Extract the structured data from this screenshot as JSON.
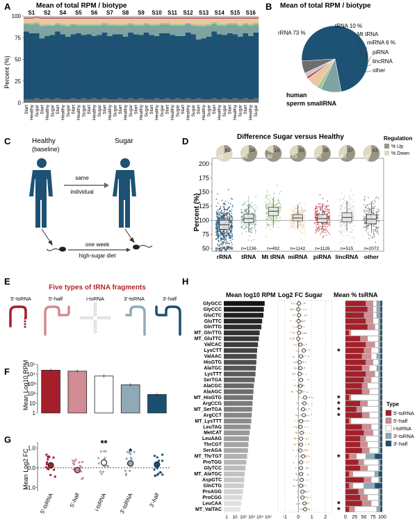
{
  "colors": {
    "rRNA": "#1d5274",
    "tRNA": "#7fa3a0",
    "MtRNA": "#a6c78c",
    "miRNA": "#e9c9a4",
    "piRNA": "#c0333d",
    "lincRNA": "#c9c9c9",
    "other": "#6e6e6e",
    "fiveTs": "#a41f2a",
    "fiveHalf": "#d08d93",
    "iTs": "#ffffff",
    "threeTs": "#8faab6",
    "threeHalf": "#1c4f6f",
    "up": "#999582",
    "down": "#dcd8c2",
    "bar_dark": "#1a1a1a"
  },
  "panels": {
    "A": {
      "letter": "A",
      "title": "Mean of total RPM / biotype",
      "ylabel": "Percent (%)",
      "y_ticks": [
        "0",
        "25",
        "50",
        "75",
        "100"
      ],
      "subjects": [
        "S1",
        "S2",
        "S4",
        "S5",
        "S6",
        "S7",
        "S8",
        "S9",
        "S10",
        "S11",
        "S12",
        "S13",
        "S14",
        "S15",
        "S16"
      ],
      "conditions": [
        "Start",
        "Healthy",
        "Sugar"
      ]
    },
    "B": {
      "letter": "B",
      "title": "Mean of total RPM / biotype",
      "labels": {
        "rRNA": "rRNA 73 %",
        "tRNA": "tRNA 10 %",
        "MtRNA": "Mt tRNA",
        "miRNA": "miRNA 6 %",
        "piRNA": "piRNA",
        "lincRNA": "lincRNA",
        "other": "other"
      },
      "caption1": "human",
      "caption2": "sperm smallRNA"
    },
    "C": {
      "letter": "C",
      "healthy": "Healthy",
      "baseline": "(baseline)",
      "sugar": "Sugar",
      "same": "same",
      "individual": "individual",
      "one_week": "one week",
      "diet": "high-sugar diet"
    },
    "D": {
      "letter": "D",
      "title": "Difference Sugar versus Healthy",
      "ylabel": "Percent (%)",
      "y_ticks": [
        "50",
        "75",
        "100",
        "125",
        "150",
        "175",
        "200"
      ],
      "legend_title": "Regulation",
      "legend_up": "% Up",
      "legend_down": "% Down"
    },
    "E": {
      "letter": "E",
      "title": "Five types of tRNA fragments",
      "types": [
        "5'-tsRNA",
        "5'-half",
        "i-tsRNA",
        "3'-tsRNA",
        "3'-half"
      ]
    },
    "F": {
      "letter": "F",
      "ylabel": "Mean Log10 RPM",
      "y_ticks": [
        "1",
        "10",
        "10²",
        "10³",
        "10⁴",
        "10⁵"
      ]
    },
    "G": {
      "letter": "G",
      "ylabel": "Mean Log2 FC",
      "y_ticks": [
        "-1.0",
        "0.0",
        "1.0"
      ],
      "x_labels": [
        "5'-tsRNA",
        "5'-half",
        "i-tsRNA",
        "3'-tsRNA",
        "3'-half"
      ]
    },
    "H": {
      "letter": "H",
      "title1": "Mean log10 RPM",
      "title2": "Log2 FC Sugar",
      "title3": "Mean % tsRNA",
      "x1_ticks": [
        "1",
        "10",
        "10²",
        "10³",
        "10⁴",
        "10⁵"
      ],
      "x2_ticks": [
        "-1",
        "0",
        "1",
        "2"
      ],
      "x3_ticks": [
        "0",
        "25",
        "50",
        "75",
        "100"
      ],
      "legend_title": "Type",
      "legend_items": [
        "5'-tsRNA",
        "5'-half",
        "i-tsRNA",
        "3'-tsRNA",
        "3'-half"
      ]
    }
  },
  "chart_data": [
    {
      "panel": "A",
      "type": "bar",
      "title": "Mean of total RPM / biotype",
      "ylabel": "Percent (%)",
      "ylim": [
        0,
        100
      ],
      "categories": [
        "S1 Start",
        "S1 Healthy",
        "S1 Sugar",
        "S2 Start",
        "S2 Healthy",
        "S2 Sugar",
        "S4 Start",
        "S4 Healthy",
        "S4 Sugar",
        "S5 Start",
        "S5 Healthy",
        "S5 Sugar",
        "S6 Start",
        "S6 Healthy",
        "S6 Sugar",
        "S7 Start",
        "S7 Healthy",
        "S7 Sugar",
        "S8 Start",
        "S8 Healthy",
        "S8 Sugar",
        "S9 Start",
        "S9 Healthy",
        "S9 Sugar",
        "S10 Start",
        "S10 Healthy",
        "S10 Sugar",
        "S11 Start",
        "S11 Healthy",
        "S11 Sugar",
        "S12 Start",
        "S12 Healthy",
        "S12 Sugar",
        "S13 Start",
        "S13 Healthy",
        "S13 Sugar",
        "S14 Start",
        "S14 Healthy",
        "S14 Sugar",
        "S15 Start",
        "S15 Healthy",
        "S15 Sugar",
        "S16 Start",
        "S16 Healthy",
        "S16 Sugar"
      ],
      "series": [
        {
          "name": "other",
          "values": [
            4,
            4,
            5,
            4,
            5,
            4,
            5,
            4,
            4,
            5,
            4,
            5,
            4,
            5,
            4,
            5,
            4,
            4,
            5,
            4,
            5,
            4,
            5,
            4,
            4,
            5,
            4,
            5,
            4,
            5,
            4,
            5,
            4,
            5,
            4,
            4,
            5,
            4,
            5,
            4,
            5,
            4,
            5,
            4,
            5
          ]
        },
        {
          "name": "rRNA",
          "values": [
            78,
            76,
            75,
            70,
            72,
            74,
            77,
            75,
            72,
            74,
            76,
            73,
            75,
            72,
            74,
            76,
            73,
            75,
            74,
            72,
            76,
            75,
            73,
            77,
            74,
            72,
            76,
            75,
            74,
            72,
            73,
            76,
            75,
            68,
            70,
            72,
            77,
            75,
            73,
            76,
            74,
            72,
            75,
            73,
            76
          ]
        },
        {
          "name": "tRNA",
          "values": [
            9,
            10,
            11,
            14,
            12,
            11,
            8,
            10,
            12,
            11,
            9,
            11,
            10,
            12,
            11,
            9,
            12,
            10,
            10,
            13,
            9,
            10,
            11,
            9,
            11,
            12,
            10,
            10,
            11,
            12,
            12,
            10,
            10,
            15,
            14,
            13,
            9,
            10,
            11,
            10,
            11,
            12,
            10,
            12,
            9
          ]
        },
        {
          "name": "MtRNA",
          "values": [
            1,
            2,
            2,
            2,
            2,
            1,
            2,
            2,
            2,
            1,
            2,
            2,
            2,
            2,
            2,
            2,
            2,
            2,
            1,
            2,
            2,
            2,
            2,
            2,
            2,
            2,
            2,
            2,
            2,
            2,
            2,
            1,
            2,
            2,
            2,
            2,
            2,
            2,
            2,
            2,
            2,
            2,
            2,
            2,
            2
          ]
        },
        {
          "name": "miRNA",
          "values": [
            5,
            5,
            5,
            7,
            6,
            7,
            5,
            6,
            7,
            6,
            6,
            6,
            6,
            6,
            6,
            5,
            6,
            6,
            7,
            6,
            5,
            6,
            6,
            5,
            6,
            6,
            5,
            5,
            6,
            6,
            6,
            5,
            6,
            7,
            7,
            6,
            4,
            6,
            6,
            5,
            5,
            7,
            5,
            6,
            5
          ]
        },
        {
          "name": "piRNA",
          "values": [
            1,
            1,
            1,
            1,
            1,
            1,
            1,
            1,
            1,
            1,
            1,
            1,
            1,
            1,
            1,
            1,
            1,
            1,
            1,
            1,
            1,
            1,
            1,
            1,
            1,
            1,
            1,
            1,
            1,
            1,
            1,
            1,
            1,
            1,
            1,
            1,
            1,
            1,
            1,
            1,
            1,
            1,
            1,
            1,
            1
          ]
        },
        {
          "name": "lincRNA",
          "values": [
            2,
            2,
            1,
            2,
            2,
            2,
            2,
            2,
            2,
            2,
            2,
            2,
            2,
            2,
            2,
            2,
            2,
            2,
            2,
            2,
            2,
            2,
            2,
            2,
            2,
            2,
            2,
            2,
            2,
            2,
            2,
            2,
            2,
            2,
            2,
            2,
            2,
            2,
            2,
            2,
            2,
            2,
            2,
            2,
            2
          ]
        }
      ]
    },
    {
      "panel": "B",
      "type": "pie",
      "title": "Mean of total RPM / biotype",
      "categories": [
        "rRNA",
        "tRNA",
        "Mt tRNA",
        "miRNA",
        "piRNA",
        "lincRNA",
        "other"
      ],
      "values": [
        73,
        10,
        2,
        6,
        1,
        2,
        6
      ]
    },
    {
      "panel": "D",
      "type": "scatter",
      "title": "Difference Sugar versus Healthy",
      "ylabel": "Percent (%)",
      "ylim": [
        45,
        210
      ],
      "categories": [
        "rRNA",
        "tRNA",
        "Mt tRNA",
        "miRNA",
        "piRNA",
        "lincRNA",
        "other"
      ],
      "n_labels": [
        "n=34900",
        "n=1236",
        "n=492",
        "n=1142",
        "n=1126",
        "n=515",
        "n=2072"
      ],
      "median": [
        92,
        103,
        116,
        104,
        103,
        105,
        102
      ],
      "q1": [
        84,
        96,
        108,
        99,
        96,
        97,
        94
      ],
      "q3": [
        100,
        111,
        123,
        110,
        110,
        113,
        110
      ],
      "whisker_low": [
        60,
        80,
        90,
        85,
        80,
        82,
        78
      ],
      "whisker_high": [
        125,
        130,
        140,
        128,
        130,
        134,
        132
      ],
      "up_percent": [
        19,
        66,
        82,
        70,
        65,
        63,
        57
      ],
      "down_percent": [
        81,
        34,
        18,
        30,
        35,
        37,
        43
      ]
    },
    {
      "panel": "F",
      "type": "bar",
      "ylabel": "Mean Log10 RPM",
      "categories": [
        "5'-tsRNA",
        "5'-half",
        "i-tsRNA",
        "3'-tsRNA",
        "3'-half"
      ],
      "values": [
        4.4,
        4.3,
        3.8,
        2.9,
        1.9
      ],
      "ylim": [
        0,
        5
      ]
    },
    {
      "panel": "G",
      "type": "scatter",
      "ylabel": "Mean Log2 FC",
      "categories": [
        "5'-tsRNA",
        "5'-half",
        "i-tsRNA",
        "3'-tsRNA",
        "3'-half"
      ],
      "means": [
        0.12,
        -0.12,
        0.26,
        0.22,
        0.16
      ],
      "significance": [
        "",
        "",
        "**",
        "*",
        ""
      ],
      "ylim": [
        -1.2,
        1.3
      ]
    },
    {
      "panel": "H",
      "type": "bar",
      "categories": [
        "GlyGCC",
        "GlyCCC",
        "GluCTC",
        "GluTTC",
        "GlnTTG",
        "MT_GlnTTG",
        "MT_GluTTC",
        "ValCAC",
        "LysCTT",
        "ValAAC",
        "HisGTG",
        "AlaTGC",
        "LysTTT",
        "SerTGA",
        "AlaCGC",
        "AlaAGC",
        "MT_HisGTG",
        "ArgCCG",
        "MT_SerTGA",
        "ArgCCT",
        "MT_LysTTT",
        "LeuTAG",
        "MetCAT",
        "LeuAAG",
        "ThrCGT",
        "SerAGA",
        "MT_ThrTGT",
        "ProTGG",
        "GlyTCC",
        "MT_AlaTGC",
        "AspGTC",
        "GlnCTG",
        "ProAGG",
        "ProCGG",
        "LeuCAA",
        "MT_ValTAC"
      ],
      "log10_rpm": [
        4.9,
        4.8,
        4.75,
        4.6,
        4.5,
        4.3,
        4.2,
        4.1,
        4.0,
        3.95,
        3.9,
        3.85,
        3.8,
        3.7,
        3.6,
        3.55,
        3.5,
        3.45,
        3.4,
        3.35,
        3.3,
        3.2,
        3.1,
        3.0,
        2.95,
        2.9,
        2.8,
        2.7,
        2.6,
        2.5,
        2.45,
        2.4,
        2.3,
        2.2,
        2.1,
        2.0
      ],
      "log2_fc": [
        0.05,
        0.0,
        0.05,
        0.02,
        0.1,
        0.05,
        0.0,
        0.15,
        0.4,
        0.2,
        0.1,
        0.15,
        0.1,
        0.2,
        0.15,
        0.1,
        0.5,
        0.45,
        0.35,
        0.4,
        0.2,
        0.15,
        0.25,
        0.2,
        0.2,
        0.15,
        0.35,
        0.2,
        0.2,
        0.2,
        0.25,
        0.2,
        0.3,
        0.3,
        0.45,
        0.5
      ],
      "significant": [
        "",
        "",
        "",
        "",
        "",
        "",
        "",
        "",
        "*",
        "",
        "",
        "",
        "",
        "",
        "",
        "",
        "*",
        "*",
        "*",
        "*",
        "",
        "",
        "",
        "",
        "",
        "",
        "*",
        "",
        "",
        "",
        "",
        "",
        "",
        "",
        "*",
        "*"
      ],
      "type_fractions": [
        [
          55,
          20,
          10,
          10,
          5
        ],
        [
          60,
          15,
          10,
          10,
          5
        ],
        [
          50,
          25,
          10,
          10,
          5
        ],
        [
          55,
          20,
          15,
          5,
          5
        ],
        [
          60,
          20,
          10,
          5,
          5
        ],
        [
          10,
          5,
          75,
          5,
          5
        ],
        [
          40,
          20,
          30,
          5,
          5
        ],
        [
          55,
          25,
          10,
          5,
          5
        ],
        [
          50,
          20,
          20,
          5,
          5
        ],
        [
          45,
          25,
          15,
          10,
          5
        ],
        [
          55,
          20,
          15,
          5,
          5
        ],
        [
          45,
          20,
          20,
          10,
          5
        ],
        [
          55,
          25,
          10,
          5,
          5
        ],
        [
          50,
          20,
          20,
          5,
          5
        ],
        [
          45,
          15,
          30,
          5,
          5
        ],
        [
          45,
          20,
          25,
          5,
          5
        ],
        [
          10,
          5,
          75,
          5,
          5
        ],
        [
          40,
          20,
          30,
          5,
          5
        ],
        [
          30,
          15,
          45,
          5,
          5
        ],
        [
          45,
          20,
          25,
          5,
          5
        ],
        [
          10,
          5,
          75,
          5,
          5
        ],
        [
          45,
          25,
          20,
          5,
          5
        ],
        [
          50,
          25,
          15,
          5,
          5
        ],
        [
          40,
          15,
          35,
          5,
          5
        ],
        [
          40,
          20,
          30,
          5,
          5
        ],
        [
          45,
          20,
          25,
          5,
          5
        ],
        [
          10,
          20,
          25,
          25,
          20
        ],
        [
          35,
          15,
          40,
          5,
          5
        ],
        [
          40,
          20,
          30,
          5,
          5
        ],
        [
          10,
          10,
          60,
          10,
          10
        ],
        [
          50,
          20,
          20,
          5,
          5
        ],
        [
          10,
          10,
          30,
          30,
          20
        ],
        [
          35,
          15,
          40,
          5,
          5
        ],
        [
          40,
          20,
          30,
          5,
          5
        ],
        [
          45,
          25,
          20,
          5,
          5
        ],
        [
          10,
          15,
          60,
          10,
          5
        ]
      ]
    }
  ]
}
